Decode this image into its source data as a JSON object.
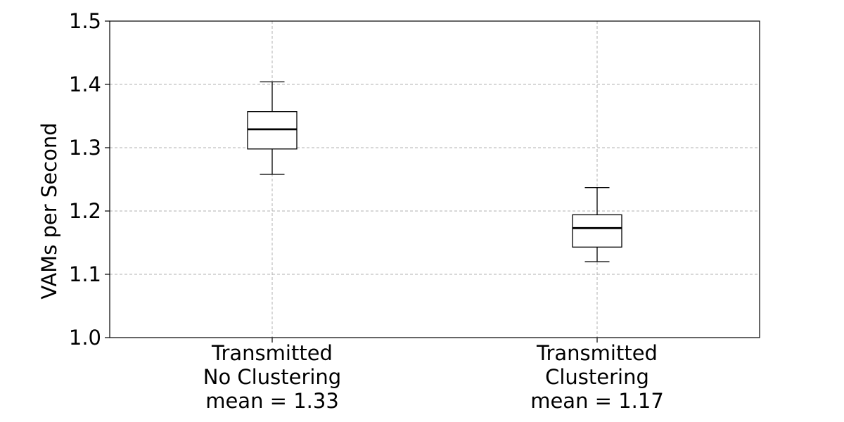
{
  "chart_data": {
    "type": "box",
    "title": "",
    "xlabel": "",
    "ylabel": "VAMs per Second",
    "ylim": [
      1.0,
      1.5
    ],
    "yticks": [
      1.0,
      1.1,
      1.2,
      1.3,
      1.4,
      1.5
    ],
    "ytick_labels": [
      "1.0",
      "1.1",
      "1.2",
      "1.3",
      "1.4",
      "1.5"
    ],
    "grid": true,
    "categories": [
      {
        "lines": [
          "Transmitted",
          "No Clustering",
          "mean = 1.33"
        ],
        "whisker_low": 1.258,
        "q1": 1.298,
        "median": 1.329,
        "q3": 1.357,
        "whisker_high": 1.404
      },
      {
        "lines": [
          "Transmitted",
          "Clustering",
          "mean = 1.17"
        ],
        "whisker_low": 1.12,
        "q1": 1.143,
        "median": 1.173,
        "q3": 1.194,
        "whisker_high": 1.237
      }
    ],
    "colors": {
      "box_edge": "#000000",
      "median": "#000000",
      "grid": "#b0b0b0",
      "background": "#ffffff"
    }
  }
}
